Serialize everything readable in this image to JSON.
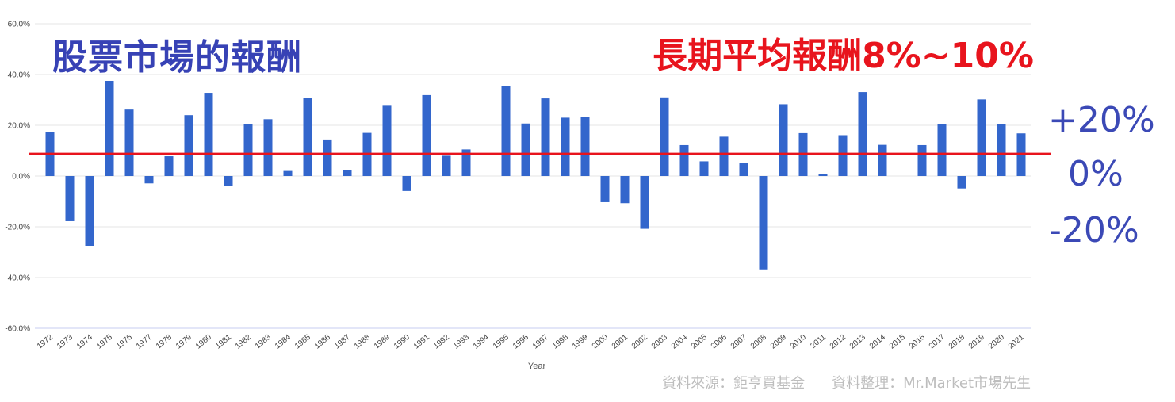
{
  "title_left": "股票市場的報酬",
  "title_right": "長期平均報酬8%~10%",
  "side_labels": [
    "+20%",
    "0%",
    "-20%"
  ],
  "source_text": "資料來源：鉅亨買基金",
  "compiled_text": "資料整理：Mr.Market市場先生",
  "colors": {
    "bar": "#3366cc",
    "average_line": "#e8141d",
    "title_left": "#3742b5",
    "title_right": "#e8141d",
    "side_labels": "#3b49b6"
  },
  "chart_data": {
    "type": "bar",
    "xlabel": "Year",
    "ylim": [
      -60,
      60
    ],
    "yticks": [
      60,
      40,
      20,
      0,
      -20,
      -40,
      -60
    ],
    "ytick_labels": [
      "60.0%",
      "40.0%",
      "20.0%",
      "0.0%",
      "-20.0%",
      "-40.0%",
      "-60.0%"
    ],
    "categories": [
      "1972",
      "1973",
      "1974",
      "1975",
      "1976",
      "1977",
      "1978",
      "1979",
      "1980",
      "1981",
      "1982",
      "1983",
      "1984",
      "1985",
      "1986",
      "1987",
      "1988",
      "1989",
      "1990",
      "1991",
      "1992",
      "1993",
      "1994",
      "1995",
      "1996",
      "1997",
      "1998",
      "1999",
      "2000",
      "2001",
      "2002",
      "2003",
      "2004",
      "2005",
      "2006",
      "2007",
      "2008",
      "2009",
      "2010",
      "2011",
      "2012",
      "2013",
      "2014",
      "2015",
      "2016",
      "2017",
      "2018",
      "2019",
      "2020",
      "2021"
    ],
    "values": [
      17.3,
      -17.8,
      -27.5,
      37.5,
      26.2,
      -2.9,
      7.8,
      24.0,
      32.8,
      -4.0,
      20.4,
      22.4,
      2.0,
      30.9,
      14.4,
      2.4,
      17.0,
      27.7,
      -5.9,
      31.9,
      8.0,
      10.5,
      0.0,
      35.5,
      20.7,
      30.6,
      23.0,
      23.4,
      -10.3,
      -10.7,
      -20.8,
      31.0,
      12.2,
      5.8,
      15.5,
      5.2,
      -36.8,
      28.3,
      16.9,
      0.8,
      16.1,
      33.1,
      12.3,
      0.0,
      12.2,
      20.6,
      -4.9,
      30.2,
      20.6,
      16.8
    ],
    "average_line": 8.8,
    "grid": true
  }
}
